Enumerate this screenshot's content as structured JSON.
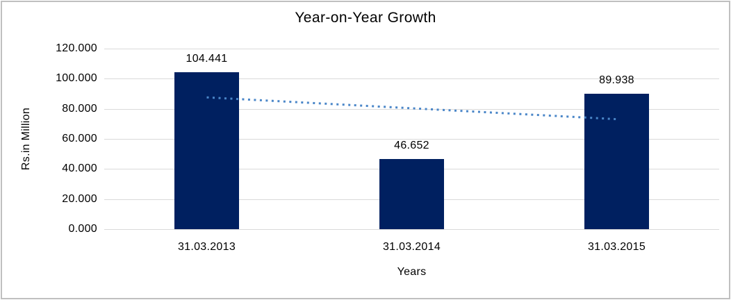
{
  "chart_data": {
    "type": "bar",
    "title": "Year-on-Year Growth",
    "xlabel": "Years",
    "ylabel": "Rs.in Million",
    "categories": [
      "31.03.2013",
      "31.03.2014",
      "31.03.2015"
    ],
    "values": [
      104.441,
      46.652,
      89.938
    ],
    "value_labels": [
      "104.441",
      "46.652",
      "89.938"
    ],
    "y_tick_labels": [
      "0.000",
      "20.000",
      "40.000",
      "60.000",
      "80.000",
      "100.000",
      "120.000"
    ],
    "ylim": [
      0,
      120
    ],
    "y_tick_step": 20,
    "grid": true,
    "legend_position": "none",
    "trendline": {
      "type": "linear",
      "style": "dotted"
    }
  },
  "colors": {
    "bar": "#002060",
    "trendline": "#4a86c8",
    "gridline": "#d9d9d9",
    "axis_line": "#d9d9d9",
    "text": "#000000",
    "chart_border": "#bfbfbf",
    "background": "#ffffff"
  }
}
